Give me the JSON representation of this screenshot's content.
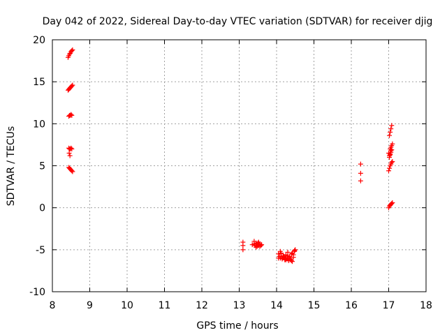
{
  "chart_data": {
    "type": "scatter",
    "title": "Day 042 of 2022, Sidereal Day-to-day VTEC variation (SDTVAR) for receiver djig",
    "xlabel": "GPS time / hours",
    "ylabel": "SDTVAR / TECUs",
    "xlim": [
      8,
      18
    ],
    "ylim": [
      -10,
      20
    ],
    "xticks": [
      "8",
      "9",
      "10",
      "11",
      "12",
      "13",
      "14",
      "15",
      "16",
      "17",
      "18"
    ],
    "yticks": [
      "-10",
      "-5",
      "0",
      "5",
      "10",
      "15",
      "20"
    ],
    "grid": true,
    "marker": "+",
    "color": "#ff0000",
    "series": [
      {
        "name": "SDTVAR",
        "x": [
          8.42,
          8.44,
          8.46,
          8.48,
          8.5,
          8.52,
          8.54,
          8.42,
          8.44,
          8.46,
          8.48,
          8.5,
          8.52,
          8.54,
          8.44,
          8.46,
          8.48,
          8.5,
          8.52,
          8.44,
          8.46,
          8.48,
          8.5,
          8.52,
          8.45,
          8.47,
          8.44,
          8.46,
          8.48,
          8.5,
          8.52,
          8.54,
          13.1,
          13.1,
          13.1,
          13.35,
          13.4,
          13.42,
          13.45,
          13.48,
          13.5,
          13.52,
          13.55,
          13.58,
          13.4,
          13.45,
          13.5,
          13.55,
          13.6,
          13.45,
          13.52,
          14.05,
          14.08,
          14.1,
          14.12,
          14.15,
          14.18,
          14.2,
          14.22,
          14.25,
          14.28,
          14.3,
          14.32,
          14.35,
          14.38,
          14.4,
          14.42,
          14.45,
          14.48,
          14.5,
          14.1,
          14.15,
          14.2,
          14.25,
          14.3,
          14.35,
          14.4,
          14.45,
          14.05,
          14.12,
          14.18,
          14.24,
          14.3,
          14.36,
          14.42,
          14.48,
          16.25,
          16.25,
          16.25,
          17.0,
          17.02,
          17.04,
          17.06,
          17.08,
          17.1,
          17.0,
          17.02,
          17.04,
          17.06,
          17.08,
          17.1,
          17.02,
          17.04,
          17.06,
          17.08,
          17.04,
          17.06,
          17.08,
          17.1,
          17.02,
          17.04,
          17.06,
          17.0,
          17.02,
          17.04,
          17.06,
          17.08
        ],
        "y": [
          17.9,
          18.1,
          18.3,
          18.4,
          18.6,
          18.7,
          18.8,
          14.0,
          14.1,
          14.2,
          14.3,
          14.4,
          14.5,
          14.6,
          10.9,
          11.0,
          11.0,
          11.1,
          11.0,
          7.1,
          7.0,
          7.0,
          7.1,
          7.0,
          6.5,
          6.2,
          4.8,
          4.7,
          4.6,
          4.5,
          4.4,
          4.3,
          -4.1,
          -4.5,
          -5.0,
          -4.4,
          -4.3,
          -4.5,
          -4.2,
          -4.6,
          -4.4,
          -4.1,
          -4.3,
          -4.5,
          -4.0,
          -4.7,
          -4.2,
          -4.6,
          -4.4,
          -4.3,
          -4.5,
          -5.5,
          -5.8,
          -6.0,
          -5.4,
          -6.1,
          -5.7,
          -5.9,
          -6.2,
          -5.6,
          -6.0,
          -5.3,
          -6.3,
          -5.8,
          -6.1,
          -5.5,
          -6.4,
          -5.9,
          -5.2,
          -5.0,
          -5.2,
          -6.0,
          -5.8,
          -6.2,
          -6.1,
          -5.9,
          -6.3,
          -5.6,
          -6.0,
          -5.5,
          -5.9,
          -6.1,
          -5.7,
          -6.2,
          -5.4,
          -5.1,
          5.2,
          4.1,
          3.2,
          0.0,
          0.2,
          0.3,
          0.4,
          0.5,
          0.6,
          4.4,
          4.7,
          5.0,
          5.2,
          5.4,
          5.5,
          6.0,
          6.3,
          6.6,
          6.9,
          7.0,
          7.2,
          7.4,
          7.6,
          8.6,
          9.0,
          9.4,
          6.5,
          6.2,
          6.4,
          6.8,
          9.8
        ]
      }
    ]
  }
}
